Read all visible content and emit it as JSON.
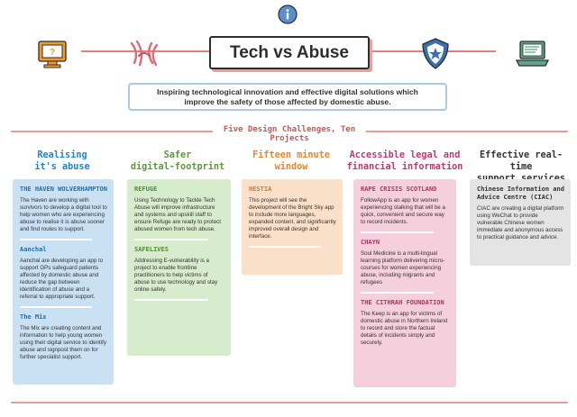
{
  "header": {
    "title": "Tech vs Abuse",
    "subtitle_line1": "Inspiring technological innovation and effective digital solutions which",
    "subtitle_line2": "improve the safety of those affected by domestic abuse.",
    "section_title": "Five Design Challenges, Ten Projects"
  },
  "colors": {
    "blue": "#c9e1f3",
    "green": "#d7ebcd",
    "orange": "#fbe0c9",
    "pink": "#f6cfdc",
    "grey": "#e4e4e4",
    "accent": "#d9534f"
  },
  "icons": [
    "info-icon",
    "monitor-icon",
    "hands-icon",
    "shield-icon",
    "laptop-icon"
  ],
  "columns": [
    {
      "heading_line1": "Realising",
      "heading_line2": "it's abuse",
      "projects": [
        {
          "name": "THE HAVEN WOLVERHAMPTON",
          "text": "The Haven are working with survivors to develop a digital tool to help women who are experiencing abuse to realise it is abuse sooner and find routes to support."
        },
        {
          "name": "Aanchal",
          "text": "Aanchal are developing an app to support GPs safeguard patients affected by domestic abuse and reduce the gap between identification of abuse and a referral to appropriate support."
        },
        {
          "name": "The Mix",
          "text": "The Mix are creating content and information to help young women using their digital service to identify abuse and signpost them on for further specialist support."
        }
      ]
    },
    {
      "heading_line1": "Safer",
      "heading_line2": "digital-footprint",
      "projects": [
        {
          "name": "REFUGE",
          "text": "Using Technology to Tackle Tech Abuse will improve infrastructure and systems and upskill staff to ensure Refuge are ready to protect abused women from tech abuse."
        },
        {
          "name": "SAFELIVES",
          "text": "Addressing E-vulnerability is a project to enable frontline practitioners to help victims of abuse to use technology and stay online safely."
        }
      ]
    },
    {
      "heading_line1": "Fifteen minute",
      "heading_line2": "window",
      "projects": [
        {
          "name": "HESTIA",
          "text": "This project will see the development of the Bright Sky app to include more languages, expanded content, and significantly improved overall design and interface."
        }
      ]
    },
    {
      "heading_line1": "Accessible legal and",
      "heading_line2": "financial information",
      "projects": [
        {
          "name": "RAPE CRISIS SCOTLAND",
          "text": "FollowApp is an app for women experiencing stalking that will be a quick, convenient and secure way to record incidents."
        },
        {
          "name": "CHAYN",
          "text": "Soul Medicine is a multi-lingual learning platform delivering micro-courses for women experiencing abuse, including migrants and refugees"
        },
        {
          "name": "THE CITHRAH FOUNDATION",
          "text": "The Keep is an app for victims of domestic abuse in Northern Ireland to record and store the factual details of incidents simply and securely."
        }
      ]
    },
    {
      "heading_line1": "Effective real-time",
      "heading_line2": "support services",
      "projects": [
        {
          "name": "Chinese Information and Advice Centre (CIAC)",
          "text": "CIAC are creating a digital platform using WeChat to provide vulnerable Chinese women immediate and anonymous access to practical guidance and advice."
        }
      ]
    }
  ]
}
